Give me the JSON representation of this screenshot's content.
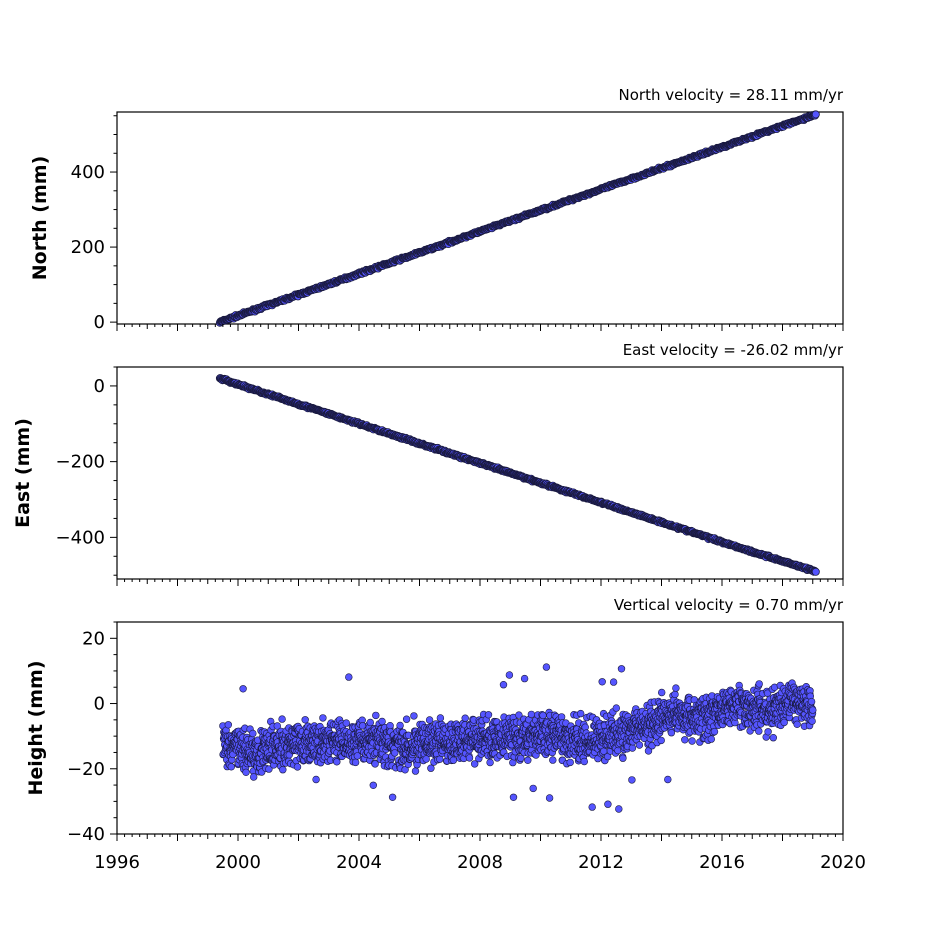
{
  "chart_data": [
    {
      "type": "scatter",
      "title": "North velocity = 28.11 mm/yr",
      "xlabel": "",
      "ylabel": "North (mm)",
      "xlim": [
        1996,
        2020
      ],
      "ylim": [
        -5,
        560
      ],
      "yticks": [
        0,
        200,
        400
      ],
      "ytick_labels": [
        "0",
        "200",
        "400"
      ],
      "trend": {
        "start_year": 1999.4,
        "end_year": 2019.1,
        "start_value": 0,
        "end_value": 553
      },
      "series": [
        {
          "name": "",
          "x": [
            1999.4,
            2001.0,
            2003.0,
            2005.0,
            2007.0,
            2009.0,
            2011.0,
            2013.0,
            2015.0,
            2017.0,
            2019.1
          ],
          "y": [
            0,
            45,
            101,
            157,
            213,
            270,
            326,
            382,
            438,
            495,
            553
          ]
        }
      ]
    },
    {
      "type": "scatter",
      "title": "East velocity = -26.02 mm/yr",
      "xlabel": "",
      "ylabel": "East (mm)",
      "xlim": [
        1996,
        2020
      ],
      "ylim": [
        -510,
        50
      ],
      "yticks": [
        0,
        -200,
        -400
      ],
      "ytick_labels": [
        "0",
        "−200",
        "−400"
      ],
      "trend": {
        "start_year": 1999.4,
        "end_year": 2019.1,
        "start_value": 20,
        "end_value": -490
      },
      "series": [
        {
          "name": "",
          "x": [
            1999.4,
            2001.0,
            2003.0,
            2005.0,
            2007.0,
            2009.0,
            2011.0,
            2013.0,
            2015.0,
            2017.0,
            2019.1
          ],
          "y": [
            20,
            -22,
            -74,
            -126,
            -178,
            -230,
            -282,
            -334,
            -386,
            -438,
            -490
          ]
        }
      ]
    },
    {
      "type": "scatter",
      "title": "Vertical velocity = 0.70 mm/yr",
      "xlabel": "",
      "ylabel": "Height (mm)",
      "xlim": [
        1996,
        2020
      ],
      "ylim": [
        -40,
        25
      ],
      "yticks": [
        20,
        0,
        -20,
        -40
      ],
      "ytick_labels": [
        "20",
        "0",
        "−20",
        "−40"
      ],
      "xticks": [
        1996,
        2000,
        2004,
        2008,
        2012,
        2016,
        2020
      ],
      "xtick_labels": [
        "1996",
        "2000",
        "2004",
        "2008",
        "2012",
        "2016",
        "2020"
      ],
      "series": [
        {
          "name": "",
          "x": [
            1999.5,
            2000.5,
            2001.5,
            2002.5,
            2003.5,
            2004.5,
            2005.5,
            2006.5,
            2007.5,
            2008.5,
            2009.5,
            2010.5,
            2011.5,
            2012.5,
            2013.5,
            2014.5,
            2015.5,
            2016.5,
            2017.5,
            2018.5,
            2019.0
          ],
          "y": [
            -13,
            -15,
            -13,
            -12,
            -12,
            -11,
            -13,
            -12,
            -11,
            -11,
            -10,
            -10,
            -12,
            -10,
            -6,
            -3,
            -4,
            0,
            -2,
            1,
            0
          ],
          "spread": [
            -10,
            8
          ]
        }
      ]
    }
  ],
  "marker_color": "#5555ff",
  "marker_edge": "#1a1a40"
}
